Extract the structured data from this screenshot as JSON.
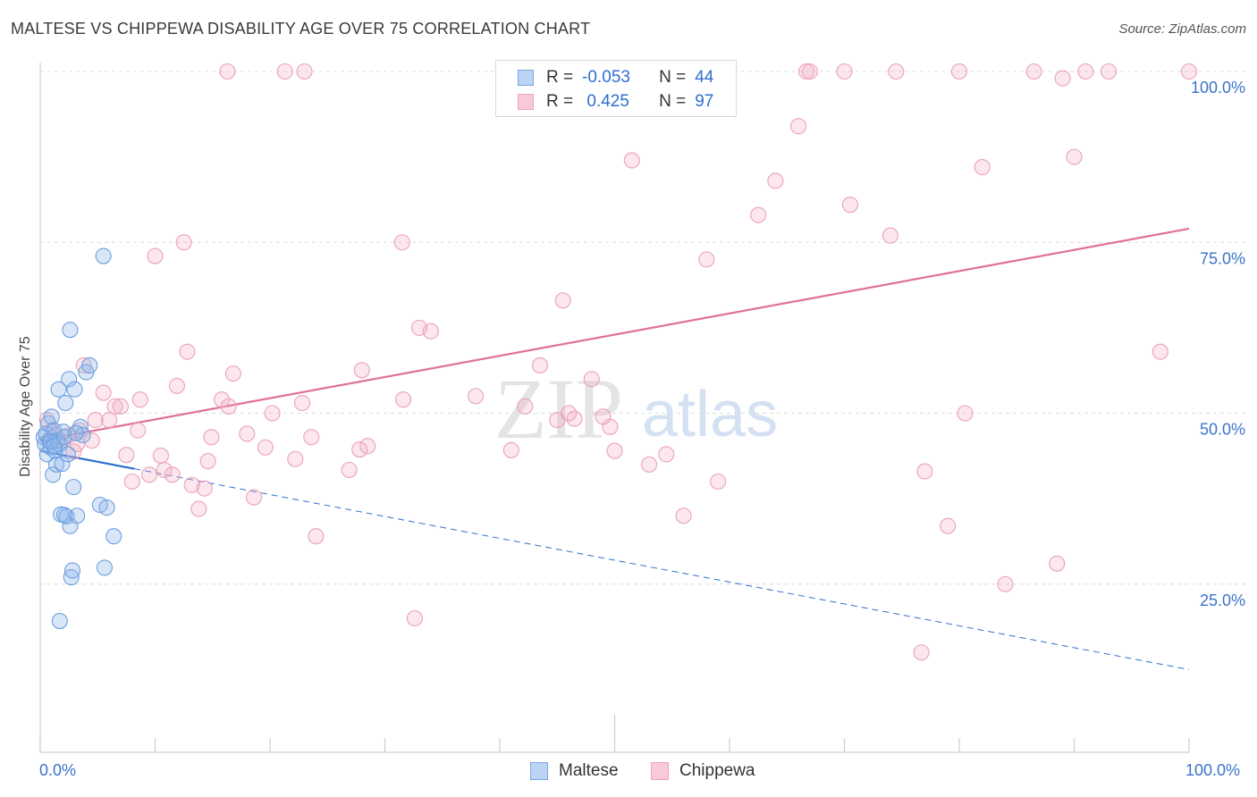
{
  "header": {
    "title": "MALTESE VS CHIPPEWA DISABILITY AGE OVER 75 CORRELATION CHART",
    "source": "Source: ZipAtlas.com"
  },
  "watermark": {
    "part1": "ZIP",
    "part2": "atlas"
  },
  "legend": {
    "rows": [
      {
        "r_label": "R =",
        "r_value": "-0.053",
        "n_label": "N =",
        "n_value": "44"
      },
      {
        "r_label": "R =",
        "r_value": " 0.425",
        "n_label": "N =",
        "n_value": "97"
      }
    ]
  },
  "bottom_legend": {
    "maltese": "Maltese",
    "chippewa": "Chippewa"
  },
  "x_axis": {
    "min_label": "0.0%",
    "max_label": "100.0%"
  },
  "chart_data": {
    "type": "scatter",
    "title": "MALTESE VS CHIPPEWA DISABILITY AGE OVER 75 CORRELATION CHART",
    "xlabel": "",
    "ylabel": "Disability Age Over 75",
    "xlim": [
      0,
      100
    ],
    "ylim": [
      0,
      102
    ],
    "y_ticks": [
      25,
      50,
      75,
      100
    ],
    "y_tick_labels": [
      "25.0%",
      "50.0%",
      "75.0%",
      "100.0%"
    ],
    "grid": true,
    "legend_position": "top-center",
    "colors": {
      "maltese": "#8fb8ec",
      "maltese_line": "#2f6fd0",
      "chippewa": "#f2a9c0",
      "chippewa_line": "#e0709a",
      "tick_label": "#3a73c9"
    },
    "series": [
      {
        "name": "Maltese",
        "r": -0.053,
        "n": 44,
        "trend": {
          "x0": 0,
          "y0": 44.5,
          "x1": 100,
          "y1": 12.5,
          "solid_until": 8.2
        },
        "points": [
          [
            0.3,
            46.5
          ],
          [
            0.4,
            45.5
          ],
          [
            0.5,
            47.0
          ],
          [
            0.6,
            44.0
          ],
          [
            0.7,
            48.5
          ],
          [
            0.8,
            46.0
          ],
          [
            0.9,
            45.0
          ],
          [
            1.0,
            49.5
          ],
          [
            1.1,
            41.0
          ],
          [
            1.2,
            47.5
          ],
          [
            1.3,
            44.5
          ],
          [
            1.4,
            42.5
          ],
          [
            1.5,
            46.0
          ],
          [
            1.6,
            53.5
          ],
          [
            1.7,
            45.5
          ],
          [
            1.8,
            35.2
          ],
          [
            1.9,
            42.6
          ],
          [
            2.0,
            47.3
          ],
          [
            2.1,
            46.5
          ],
          [
            2.2,
            51.5
          ],
          [
            2.3,
            34.9
          ],
          [
            2.4,
            44.0
          ],
          [
            2.5,
            55.0
          ],
          [
            2.6,
            62.2
          ],
          [
            2.6,
            33.5
          ],
          [
            2.7,
            26.0
          ],
          [
            2.8,
            27.0
          ],
          [
            2.9,
            39.2
          ],
          [
            3.0,
            53.5
          ],
          [
            3.2,
            35.0
          ],
          [
            3.5,
            48.0
          ],
          [
            3.7,
            46.8
          ],
          [
            4.0,
            56.0
          ],
          [
            4.3,
            57.0
          ],
          [
            5.2,
            36.6
          ],
          [
            5.5,
            73.0
          ],
          [
            5.6,
            27.4
          ],
          [
            5.8,
            36.2
          ],
          [
            6.4,
            32.0
          ],
          [
            1.7,
            19.6
          ],
          [
            2.1,
            35.1
          ],
          [
            0.9,
            45.8
          ],
          [
            1.2,
            45.2
          ],
          [
            3.1,
            47.1
          ]
        ]
      },
      {
        "name": "Chippewa",
        "r": 0.425,
        "n": 97,
        "trend": {
          "x0": 0,
          "y0": 46.0,
          "x1": 100,
          "y1": 77.0
        },
        "points": [
          [
            0.6,
            49.0
          ],
          [
            1.0,
            47.5
          ],
          [
            1.3,
            46.8
          ],
          [
            1.8,
            46.0
          ],
          [
            2.4,
            46.7
          ],
          [
            2.9,
            44.4
          ],
          [
            3.4,
            47.5
          ],
          [
            3.2,
            45.5
          ],
          [
            3.8,
            57.0
          ],
          [
            4.5,
            46.0
          ],
          [
            4.8,
            49.0
          ],
          [
            5.5,
            53.0
          ],
          [
            6.0,
            49.0
          ],
          [
            6.5,
            51.0
          ],
          [
            7.0,
            51.0
          ],
          [
            7.5,
            43.9
          ],
          [
            8.0,
            40.0
          ],
          [
            8.5,
            47.5
          ],
          [
            8.7,
            52.0
          ],
          [
            9.5,
            41.0
          ],
          [
            10.0,
            73.0
          ],
          [
            10.5,
            43.8
          ],
          [
            10.8,
            41.7
          ],
          [
            11.5,
            41.0
          ],
          [
            11.9,
            54.0
          ],
          [
            12.5,
            75.0
          ],
          [
            12.8,
            59.0
          ],
          [
            13.2,
            39.5
          ],
          [
            13.8,
            36.0
          ],
          [
            14.3,
            39.0
          ],
          [
            14.6,
            43.0
          ],
          [
            14.9,
            46.5
          ],
          [
            15.8,
            52.0
          ],
          [
            16.4,
            51.0
          ],
          [
            16.8,
            55.8
          ],
          [
            18.0,
            47.0
          ],
          [
            18.6,
            37.7
          ],
          [
            19.6,
            45.0
          ],
          [
            20.2,
            50.0
          ],
          [
            21.3,
            100.0
          ],
          [
            22.2,
            43.3
          ],
          [
            22.8,
            51.5
          ],
          [
            23.6,
            46.5
          ],
          [
            24.0,
            32.0
          ],
          [
            23.0,
            100.0
          ],
          [
            16.3,
            100.0
          ],
          [
            26.9,
            41.7
          ],
          [
            28.0,
            56.3
          ],
          [
            27.8,
            44.7
          ],
          [
            28.5,
            45.2
          ],
          [
            31.5,
            75.0
          ],
          [
            31.6,
            52.0
          ],
          [
            32.6,
            20.0
          ],
          [
            33.0,
            62.5
          ],
          [
            34.0,
            62.0
          ],
          [
            37.9,
            52.5
          ],
          [
            41.0,
            44.6
          ],
          [
            42.2,
            51.0
          ],
          [
            43.5,
            57.0
          ],
          [
            45.0,
            49.0
          ],
          [
            45.5,
            66.5
          ],
          [
            46.0,
            50.0
          ],
          [
            46.5,
            49.2
          ],
          [
            48.0,
            55.0
          ],
          [
            49.0,
            49.5
          ],
          [
            49.6,
            48.0
          ],
          [
            50.0,
            44.5
          ],
          [
            51.5,
            87.0
          ],
          [
            53.0,
            42.5
          ],
          [
            54.5,
            44.0
          ],
          [
            56.0,
            35.0
          ],
          [
            58.0,
            72.5
          ],
          [
            59.0,
            40.0
          ],
          [
            62.5,
            79.0
          ],
          [
            64.0,
            84.0
          ],
          [
            66.0,
            92.0
          ],
          [
            66.7,
            100.0
          ],
          [
            67.0,
            100.0
          ],
          [
            70.0,
            100.0
          ],
          [
            70.5,
            80.5
          ],
          [
            74.0,
            76.0
          ],
          [
            74.5,
            100.0
          ],
          [
            76.7,
            15.0
          ],
          [
            77.0,
            41.5
          ],
          [
            79.0,
            33.5
          ],
          [
            80.0,
            100.0
          ],
          [
            80.5,
            50.0
          ],
          [
            82.0,
            86.0
          ],
          [
            84.0,
            25.0
          ],
          [
            86.5,
            100.0
          ],
          [
            88.5,
            28.0
          ],
          [
            89.0,
            99.0
          ],
          [
            90.0,
            87.5
          ],
          [
            91.0,
            100.0
          ],
          [
            93.0,
            100.0
          ],
          [
            97.5,
            59.0
          ],
          [
            100.0,
            100.0
          ]
        ]
      }
    ]
  }
}
